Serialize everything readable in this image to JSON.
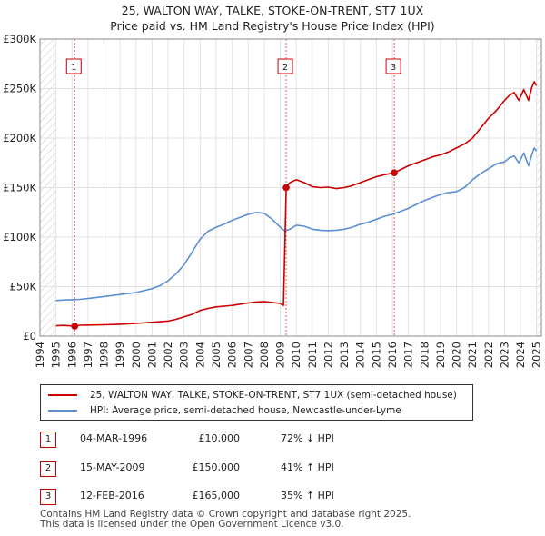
{
  "chart_data": {
    "type": "line",
    "title": "25, WALTON WAY, TALKE, STOKE-ON-TRENT, ST7 1UX",
    "subtitle": "Price paid vs. HM Land Registry's House Price Index (HPI)",
    "xlabel": "",
    "ylabel": "",
    "xlim": [
      1994,
      2025.3
    ],
    "ylim": [
      0,
      300000
    ],
    "x_ticks": [
      1994,
      1995,
      1996,
      1997,
      1998,
      1999,
      2000,
      2001,
      2002,
      2003,
      2004,
      2005,
      2006,
      2007,
      2008,
      2009,
      2010,
      2011,
      2012,
      2013,
      2014,
      2015,
      2016,
      2017,
      2018,
      2019,
      2020,
      2021,
      2022,
      2023,
      2024,
      2025
    ],
    "y_ticks": [
      0,
      50000,
      100000,
      150000,
      200000,
      250000,
      300000
    ],
    "y_tick_labels": [
      "£0",
      "£50K",
      "£100K",
      "£150K",
      "£200K",
      "£250K",
      "£300K"
    ],
    "series": [
      {
        "name": "25, WALTON WAY, TALKE, STOKE-ON-TRENT, ST7 1UX (semi-detached house)",
        "color": "#cc0000",
        "x": [
          1995.0,
          1995.5,
          1996.17,
          1996.5,
          1997,
          1998,
          1999,
          2000,
          2001,
          2002,
          2002.5,
          2003,
          2003.5,
          2004,
          2004.5,
          2005,
          2006,
          2007,
          2007.5,
          2008,
          2008.5,
          2009.0,
          2009.2,
          2009.37,
          2009.6,
          2010,
          2010.5,
          2011,
          2011.5,
          2012,
          2012.5,
          2013,
          2013.5,
          2014,
          2014.5,
          2015,
          2015.5,
          2016.12,
          2016.5,
          2017,
          2017.5,
          2018,
          2018.5,
          2019,
          2019.5,
          2020,
          2020.5,
          2021,
          2021.5,
          2022,
          2022.5,
          2023,
          2023.3,
          2023.6,
          2023.9,
          2024.2,
          2024.5,
          2024.7,
          2024.85,
          2025.0
        ],
        "values": [
          10500,
          10800,
          10000,
          11000,
          11200,
          11500,
          12000,
          12800,
          14000,
          15200,
          17000,
          19500,
          22000,
          26000,
          28000,
          29500,
          31000,
          33500,
          34500,
          35000,
          34000,
          33000,
          31000,
          150000,
          155000,
          158000,
          155000,
          151000,
          150000,
          150500,
          149000,
          150000,
          152000,
          155000,
          158000,
          161000,
          163000,
          165000,
          168000,
          172000,
          175000,
          178000,
          181000,
          183000,
          186000,
          190000,
          194000,
          200000,
          210000,
          220000,
          228000,
          238000,
          243000,
          246000,
          238000,
          249000,
          238000,
          251000,
          257000,
          253000
        ]
      },
      {
        "name": "HPI: Average price, semi-detached house, Newcastle-under-Lyme",
        "color": "#5b8fd0",
        "x": [
          1995.0,
          1995.5,
          1996,
          1996.5,
          1997,
          1998,
          1999,
          2000,
          2001,
          2001.5,
          2002,
          2002.5,
          2003,
          2003.5,
          2004,
          2004.5,
          2005,
          2005.5,
          2006,
          2006.5,
          2007,
          2007.5,
          2008,
          2008.5,
          2009.0,
          2009.3,
          2009.6,
          2010,
          2010.5,
          2011,
          2011.5,
          2012,
          2012.5,
          2013,
          2013.5,
          2014,
          2014.5,
          2015,
          2015.5,
          2016,
          2016.5,
          2017,
          2017.5,
          2018,
          2018.5,
          2019,
          2019.5,
          2020,
          2020.5,
          2021,
          2021.5,
          2022,
          2022.5,
          2023,
          2023.3,
          2023.6,
          2023.9,
          2024.2,
          2024.5,
          2024.7,
          2024.85,
          2025.0
        ],
        "values": [
          36000,
          36500,
          36800,
          37200,
          38000,
          40000,
          42000,
          44000,
          48000,
          51000,
          56000,
          63000,
          72000,
          85000,
          98000,
          106000,
          110000,
          113000,
          117000,
          120000,
          123000,
          125000,
          124000,
          118000,
          110000,
          106000,
          108000,
          112000,
          111000,
          108000,
          107000,
          106500,
          107000,
          108000,
          110000,
          113000,
          115000,
          118000,
          121000,
          123000,
          126000,
          129000,
          133000,
          137000,
          140000,
          143000,
          145000,
          146000,
          150000,
          158000,
          164000,
          169000,
          174000,
          176000,
          180000,
          182000,
          175000,
          185000,
          172000,
          183000,
          190000,
          187000
        ]
      }
    ],
    "annotations": [
      {
        "label": "1",
        "x": 1996.17,
        "price": 10000
      },
      {
        "label": "2",
        "x": 2009.37,
        "price": 150000
      },
      {
        "label": "3",
        "x": 2016.12,
        "price": 165000
      }
    ]
  },
  "legend": {
    "items": [
      {
        "label": "25, WALTON WAY, TALKE, STOKE-ON-TRENT, ST7 1UX (semi-detached house)",
        "color": "#cc0000"
      },
      {
        "label": "HPI: Average price, semi-detached house, Newcastle-under-Lyme",
        "color": "#5b8fd0"
      }
    ]
  },
  "sales": [
    {
      "num": "1",
      "date": "04-MAR-1996",
      "price": "£10,000",
      "hpi": "72% ↓ HPI"
    },
    {
      "num": "2",
      "date": "15-MAY-2009",
      "price": "£150,000",
      "hpi": "41% ↑ HPI"
    },
    {
      "num": "3",
      "date": "12-FEB-2016",
      "price": "£165,000",
      "hpi": "35% ↑ HPI"
    }
  ],
  "footer": {
    "line1": "Contains HM Land Registry data © Crown copyright and database right 2025.",
    "line2": "This data is licensed under the Open Government Licence v3.0."
  }
}
